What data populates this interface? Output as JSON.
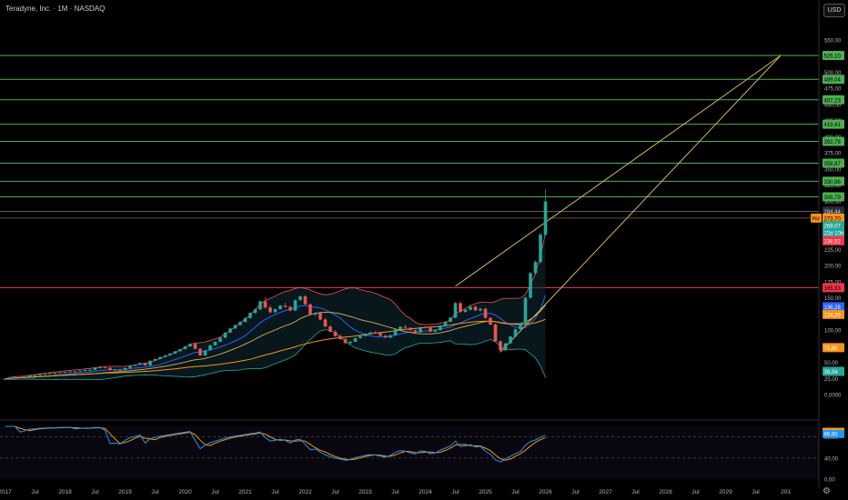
{
  "header": {
    "title": "Teradyne, Inc. · 1M · NASDAQ",
    "currency_button": "USD"
  },
  "axis": {
    "price_ticks": [
      "550,00",
      "525,00",
      "500,00",
      "475,00",
      "450,00",
      "425,00",
      "400,00",
      "375,00",
      "350,00",
      "325,00",
      "300,00",
      "275,00",
      "250,00",
      "225,00",
      "200,00",
      "175,00",
      "150,00",
      "125,00",
      "100,00",
      "75,00",
      "50,00",
      "25,00",
      "0,0000"
    ],
    "rsi_ticks": [
      "80,00",
      "40,00",
      "0,00"
    ],
    "time_ticks": [
      "2017",
      "Jul",
      "2018",
      "Jul",
      "2019",
      "Jul",
      "2020",
      "Jul",
      "2021",
      "Jul",
      "2022",
      "Jul",
      "2023",
      "Jul",
      "2024",
      "Jul",
      "2025",
      "Jul",
      "2026",
      "Jul",
      "2027",
      "Jul",
      "2028",
      "Jul",
      "2029",
      "Jul",
      "203"
    ]
  },
  "colors": {
    "up": "#26a69a",
    "down": "#ef5350",
    "level_green": "#4caf50",
    "level_red": "#f23645",
    "trendline": "#d6b656",
    "ma_blue": "#2962ff",
    "ma_orange": "#f7931a",
    "ma_tan": "#c8a050",
    "band": "#ef5350",
    "rsi_blue": "#2196f3",
    "rsi_orange": "#ff9800"
  },
  "chart_data": {
    "type": "candlestick",
    "interval": "1M",
    "symbol": "Teradyne, Inc.",
    "exchange": "NASDAQ",
    "currency": "USD",
    "start": "2017-01",
    "ohlc": [
      [
        23.8,
        24.5,
        23.0,
        24.3
      ],
      [
        24.3,
        26.2,
        24.0,
        25.9
      ],
      [
        25.9,
        27.4,
        25.4,
        27.1
      ],
      [
        27.1,
        27.8,
        26.3,
        26.8
      ],
      [
        26.8,
        28.0,
        26.5,
        27.6
      ],
      [
        27.6,
        29.7,
        27.2,
        29.4
      ],
      [
        29.4,
        30.3,
        29.0,
        30.0
      ],
      [
        30.0,
        31.8,
        29.6,
        31.4
      ],
      [
        31.4,
        32.3,
        30.8,
        31.9
      ],
      [
        31.9,
        33.5,
        31.5,
        33.1
      ],
      [
        33.1,
        33.8,
        32.5,
        33.2
      ],
      [
        33.2,
        34.8,
        33.0,
        34.5
      ],
      [
        34.5,
        35.6,
        33.9,
        35.1
      ],
      [
        35.1,
        36.4,
        34.6,
        35.9
      ],
      [
        35.9,
        36.6,
        35.2,
        35.7
      ],
      [
        35.7,
        37.4,
        35.3,
        37.0
      ],
      [
        37.0,
        38.6,
        36.5,
        38.1
      ],
      [
        38.1,
        38.9,
        37.4,
        38.3
      ],
      [
        38.3,
        41.8,
        38.0,
        41.4
      ],
      [
        41.4,
        42.7,
        40.9,
        42.2
      ],
      [
        42.2,
        43.0,
        41.1,
        41.6
      ],
      [
        41.6,
        42.0,
        37.4,
        37.9
      ],
      [
        37.9,
        39.0,
        36.8,
        38.4
      ],
      [
        38.4,
        39.4,
        37.2,
        38.0
      ],
      [
        38.0,
        41.5,
        37.7,
        41.2
      ],
      [
        41.2,
        44.8,
        40.9,
        44.5
      ],
      [
        44.5,
        46.7,
        44.0,
        46.4
      ],
      [
        46.4,
        49.6,
        45.9,
        49.1
      ],
      [
        49.1,
        50.1,
        44.6,
        45.1
      ],
      [
        45.1,
        52.9,
        44.8,
        52.5
      ],
      [
        52.5,
        55.8,
        51.9,
        55.3
      ],
      [
        55.3,
        58.9,
        54.7,
        58.4
      ],
      [
        58.4,
        61.4,
        57.8,
        60.9
      ],
      [
        60.9,
        64.0,
        60.2,
        63.5
      ],
      [
        63.5,
        67.7,
        62.9,
        67.2
      ],
      [
        67.2,
        70.9,
        66.6,
        70.4
      ],
      [
        70.4,
        75.2,
        69.8,
        74.6
      ],
      [
        74.6,
        79.5,
        73.9,
        78.7
      ],
      [
        78.7,
        80.0,
        70.1,
        71.0
      ],
      [
        71.0,
        72.1,
        60.0,
        60.5
      ],
      [
        60.5,
        69.2,
        59.8,
        68.7
      ],
      [
        68.7,
        76.8,
        68.0,
        76.3
      ],
      [
        76.3,
        82.4,
        75.5,
        81.9
      ],
      [
        81.9,
        88.8,
        81.0,
        88.1
      ],
      [
        88.1,
        96.9,
        87.3,
        96.2
      ],
      [
        96.2,
        103.2,
        95.3,
        102.5
      ],
      [
        102.5,
        108.6,
        101.7,
        107.8
      ],
      [
        107.8,
        113.5,
        107.0,
        112.7
      ],
      [
        112.7,
        119.5,
        111.6,
        118.6
      ],
      [
        118.6,
        127.8,
        117.6,
        126.7
      ],
      [
        126.7,
        133.4,
        125.2,
        132.1
      ],
      [
        132.1,
        146.0,
        130.5,
        144.5
      ],
      [
        144.5,
        151.2,
        133.2,
        135.1
      ],
      [
        135.1,
        139.0,
        125.4,
        127.6
      ],
      [
        127.6,
        133.6,
        126.5,
        132.5
      ],
      [
        132.5,
        139.0,
        131.4,
        137.8
      ],
      [
        137.8,
        142.7,
        134.6,
        135.9
      ],
      [
        135.9,
        138.2,
        129.1,
        130.3
      ],
      [
        130.3,
        147.7,
        129.5,
        146.5
      ],
      [
        146.5,
        153.8,
        145.1,
        152.4
      ],
      [
        152.4,
        154.6,
        138.8,
        140.1
      ],
      [
        140.1,
        141.7,
        122.8,
        124.0
      ],
      [
        124.0,
        127.9,
        120.7,
        126.5
      ],
      [
        126.5,
        128.4,
        115.0,
        116.3
      ],
      [
        116.3,
        119.0,
        104.2,
        105.5
      ],
      [
        105.5,
        107.8,
        96.5,
        97.4
      ],
      [
        97.4,
        100.2,
        89.6,
        90.7
      ],
      [
        90.7,
        93.3,
        84.7,
        85.9
      ],
      [
        85.9,
        87.6,
        78.8,
        79.8
      ],
      [
        79.8,
        83.1,
        77.1,
        81.9
      ],
      [
        81.9,
        88.3,
        81.0,
        87.4
      ],
      [
        87.4,
        91.6,
        86.5,
        90.6
      ],
      [
        90.6,
        95.4,
        89.7,
        94.5
      ],
      [
        94.5,
        97.7,
        92.2,
        96.3
      ],
      [
        96.3,
        98.9,
        94.0,
        95.1
      ],
      [
        95.1,
        96.4,
        90.2,
        91.2
      ],
      [
        91.2,
        92.3,
        87.6,
        88.4
      ],
      [
        88.4,
        92.9,
        87.5,
        92.1
      ],
      [
        92.1,
        101.6,
        91.3,
        100.8
      ],
      [
        100.8,
        106.0,
        99.8,
        105.1
      ],
      [
        105.1,
        108.0,
        102.5,
        103.6
      ],
      [
        103.6,
        104.4,
        98.9,
        99.7
      ],
      [
        99.7,
        101.0,
        95.6,
        96.4
      ],
      [
        96.4,
        105.3,
        95.5,
        104.6
      ],
      [
        104.6,
        106.2,
        102.4,
        103.5
      ],
      [
        103.5,
        104.7,
        96.7,
        97.6
      ],
      [
        97.6,
        100.8,
        96.8,
        99.8
      ],
      [
        99.8,
        107.9,
        99.0,
        107.1
      ],
      [
        107.1,
        113.6,
        106.2,
        112.8
      ],
      [
        112.8,
        120.2,
        112.0,
        119.3
      ],
      [
        119.3,
        143.8,
        118.2,
        141.9
      ],
      [
        141.9,
        145.0,
        126.7,
        128.2
      ],
      [
        128.2,
        133.3,
        126.9,
        131.5
      ],
      [
        131.5,
        137.7,
        130.4,
        136.4
      ],
      [
        136.4,
        138.2,
        129.7,
        130.5
      ],
      [
        130.5,
        134.5,
        127.5,
        133.1
      ],
      [
        133.1,
        134.7,
        117.7,
        118.9
      ],
      [
        118.9,
        120.2,
        107.4,
        108.6
      ],
      [
        108.6,
        110.3,
        81.5,
        82.8
      ],
      [
        82.8,
        84.0,
        65.0,
        68.6
      ],
      [
        68.6,
        80.2,
        67.4,
        79.4
      ],
      [
        79.4,
        90.9,
        78.6,
        90.0
      ],
      [
        90.0,
        102.1,
        89.2,
        101.3
      ],
      [
        101.3,
        111.3,
        100.4,
        110.5
      ],
      [
        110.5,
        152.0,
        109.5,
        150.1
      ],
      [
        150.1,
        190.6,
        148.8,
        188.2
      ],
      [
        188.2,
        208.2,
        186.0,
        205.7
      ],
      [
        205.7,
        251.3,
        203.3,
        248.0
      ],
      [
        248.0,
        318.5,
        245.0,
        299.5
      ]
    ],
    "horizontal_levels": [
      {
        "value": 526.1,
        "label": "526,10",
        "color": "green"
      },
      {
        "value": 489.04,
        "label": "489,04",
        "color": "green"
      },
      {
        "value": 457.23,
        "label": "457,23",
        "color": "green"
      },
      {
        "value": 419.41,
        "label": "419,41",
        "color": "green"
      },
      {
        "value": 392.76,
        "label": "392,76",
        "color": "green"
      },
      {
        "value": 358.87,
        "label": "358,87",
        "color": "green"
      },
      {
        "value": 330.86,
        "label": "330,86",
        "color": "green"
      },
      {
        "value": 306.79,
        "label": "306,79",
        "color": "green"
      },
      {
        "value": 284.44,
        "label": "284,44",
        "color": "grey"
      },
      {
        "value": 273.7,
        "label": "273,70",
        "color": "orange",
        "prefix": "PM"
      },
      {
        "value": 165.93,
        "label": "165,93",
        "color": "red"
      }
    ],
    "price_labels": [
      {
        "value": 262.0,
        "label": "269,07",
        "sub": "22d 10h",
        "color": "#26a69a"
      },
      {
        "value": 238.52,
        "label": "238,52",
        "color": "#f23645"
      },
      {
        "value": 136.28,
        "label": "136,28",
        "color": "#2962ff"
      },
      {
        "value": 124.26,
        "label": "124,26",
        "color": "#f7931a"
      },
      {
        "value": 72.8,
        "label": "72,80",
        "color": "#f7931a"
      },
      {
        "value": 36.04,
        "label": "36,04",
        "color": "#26a69a"
      }
    ],
    "rsi_labels": [
      {
        "value": 90.5,
        "label": "90,92",
        "color": "#ff9800"
      },
      {
        "value": 86.5,
        "label": "86,50",
        "color": "#2196f3"
      }
    ],
    "trendlines": [
      {
        "from": [
          "2024-07",
          168
        ],
        "to": [
          "2029-12",
          526
        ]
      },
      {
        "from": [
          "2025-04",
          66
        ],
        "to": [
          "2029-12",
          526
        ]
      }
    ],
    "ylim": [
      0,
      550
    ],
    "rsi_ylim": [
      0,
      100
    ],
    "grid": false
  }
}
